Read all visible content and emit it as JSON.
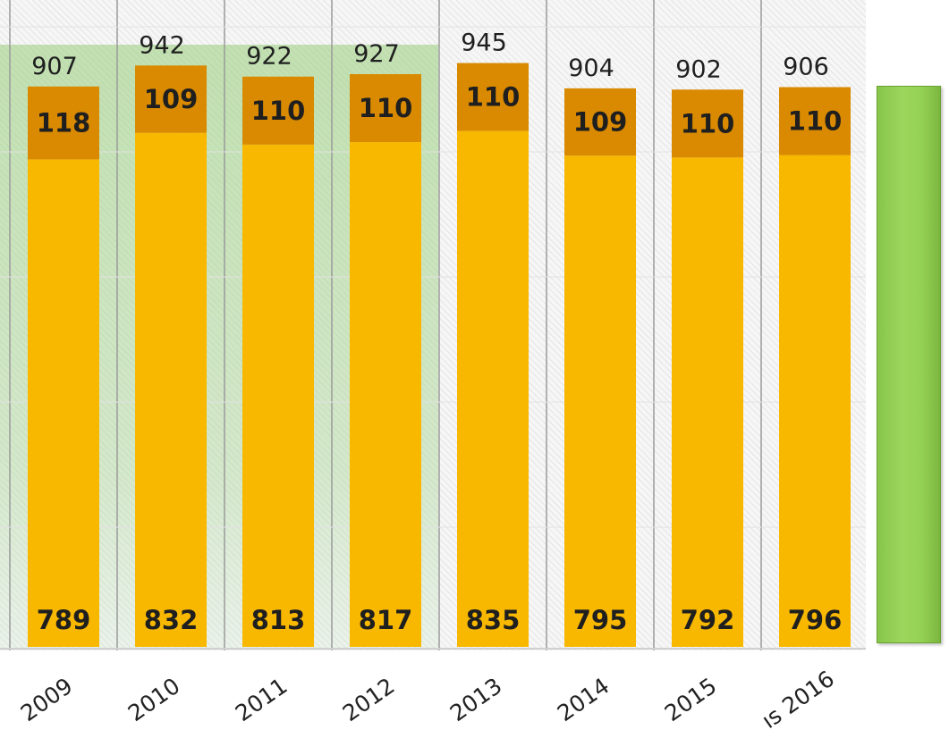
{
  "chart_data": {
    "type": "bar",
    "stacked": true,
    "categories": [
      "2009",
      "2010",
      "2011",
      "2012",
      "2013",
      "2014",
      "2015",
      "2016"
    ],
    "category_labels": [
      "2009",
      "2010",
      "2011",
      "2012",
      "2013",
      "2014",
      "2015",
      "ıs 2016"
    ],
    "series": [
      {
        "values": [
          789,
          832,
          813,
          817,
          835,
          795,
          792,
          796
        ],
        "color": "#f9b800"
      },
      {
        "values": [
          118,
          109,
          110,
          110,
          110,
          109,
          110,
          110
        ],
        "color": "#d98a00"
      }
    ],
    "totals": [
      907,
      942,
      922,
      927,
      945,
      904,
      902,
      906
    ],
    "highlight_color": "#a8d690",
    "legend_swatch_color": "#94d255"
  }
}
